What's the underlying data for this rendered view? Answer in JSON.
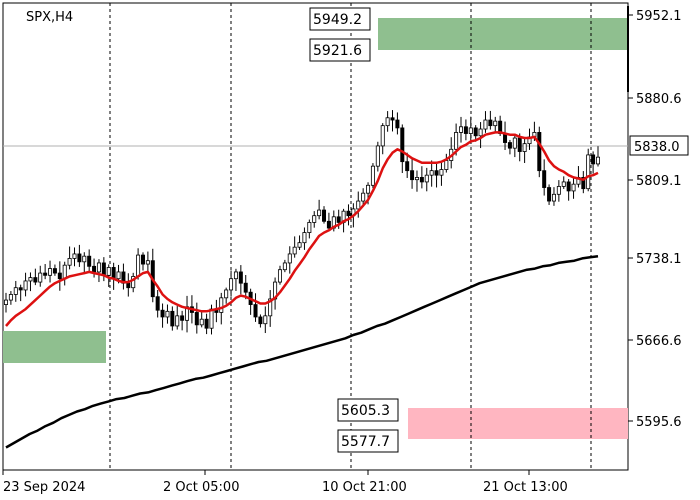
{
  "chart_data": {
    "type": "candlestick",
    "title": "SPX,H4",
    "y_ticks": [
      "5952.1",
      "5880.6",
      "5809.1",
      "5738.1",
      "5666.6",
      "5595.6"
    ],
    "x_ticks": [
      "23 Sep 2024",
      "2 Oct 05:00",
      "10 Oct 21:00",
      "21 Oct 13:00"
    ],
    "ylim": [
      5560,
      5975
    ],
    "current_price": "5838.0",
    "levels": {
      "upper_high": "5949.2",
      "upper_low": "5921.6",
      "lower_high": "5605.3",
      "lower_low": "5577.7"
    },
    "closes": [
      5711,
      5716,
      5722,
      5720,
      5728,
      5731,
      5727,
      5735,
      5733,
      5739,
      5735,
      5730,
      5742,
      5748,
      5752,
      5745,
      5750,
      5741,
      5736,
      5744,
      5733,
      5740,
      5730,
      5736,
      5726,
      5722,
      5732,
      5751,
      5743,
      5746,
      5714,
      5702,
      5696,
      5701,
      5688,
      5697,
      5693,
      5705,
      5700,
      5689,
      5694,
      5686,
      5703,
      5700,
      5713,
      5720,
      5730,
      5736,
      5726,
      5718,
      5707,
      5696,
      5690,
      5697,
      5712,
      5727,
      5738,
      5744,
      5752,
      5758,
      5762,
      5771,
      5780,
      5786,
      5791,
      5781,
      5775,
      5785,
      5780,
      5790,
      5786,
      5792,
      5799,
      5806,
      5813,
      5830,
      5848,
      5866,
      5873,
      5871,
      5864,
      5834,
      5826,
      5818,
      5820,
      5816,
      5822,
      5826,
      5822,
      5827,
      5835,
      5845,
      5860,
      5865,
      5859,
      5864,
      5857,
      5863,
      5871,
      5866,
      5870,
      5859,
      5851,
      5846,
      5855,
      5843,
      5850,
      5856,
      5860,
      5826,
      5811,
      5799,
      5805,
      5812,
      5816,
      5808,
      5814,
      5820,
      5810,
      5840,
      5832,
      5838
    ],
    "series": [
      {
        "name": "",
        "color": "#dd1111",
        "values": [
          5688,
          5693,
          5697,
          5700,
          5703,
          5707,
          5711,
          5715,
          5719,
          5723,
          5726,
          5728,
          5730,
          5732,
          5733,
          5734,
          5735,
          5736,
          5735,
          5734,
          5733,
          5731,
          5730,
          5728,
          5727,
          5727,
          5729,
          5732,
          5735,
          5736,
          5729,
          5723,
          5716,
          5712,
          5709,
          5707,
          5705,
          5704,
          5703,
          5702,
          5701,
          5701,
          5702,
          5703,
          5704,
          5706,
          5709,
          5713,
          5715,
          5714,
          5712,
          5710,
          5708,
          5708,
          5710,
          5713,
          5718,
          5724,
          5730,
          5737,
          5743,
          5749,
          5756,
          5762,
          5768,
          5771,
          5773,
          5776,
          5778,
          5781,
          5783,
          5786,
          5790,
          5795,
          5800,
          5808,
          5817,
          5828,
          5836,
          5842,
          5845,
          5843,
          5840,
          5837,
          5835,
          5833,
          5833,
          5833,
          5833,
          5834,
          5836,
          5839,
          5843,
          5847,
          5849,
          5852,
          5853,
          5855,
          5858,
          5859,
          5860,
          5860,
          5859,
          5858,
          5858,
          5856,
          5855,
          5855,
          5856,
          5850,
          5843,
          5835,
          5830,
          5827,
          5825,
          5822,
          5820,
          5819,
          5818,
          5821,
          5822,
          5824
        ]
      },
      {
        "name": "",
        "color": "#000000",
        "values": [
          5580,
          5584,
          5588,
          5592,
          5595,
          5599,
          5602,
          5606,
          5609,
          5612,
          5614,
          5617,
          5619,
          5621,
          5623,
          5624,
          5626,
          5628,
          5629,
          5631,
          5633,
          5635,
          5637,
          5639,
          5641,
          5642,
          5644,
          5646,
          5648,
          5650,
          5652,
          5654,
          5656,
          5657,
          5659,
          5661,
          5663,
          5665,
          5667,
          5669,
          5671,
          5673,
          5675,
          5677,
          5680,
          5682,
          5685,
          5688,
          5690,
          5693,
          5696,
          5699,
          5702,
          5705,
          5708,
          5711,
          5714,
          5717,
          5720,
          5723,
          5726,
          5728,
          5730,
          5732,
          5734,
          5736,
          5738,
          5739,
          5741,
          5742,
          5744,
          5745,
          5746,
          5748,
          5749,
          5750
        ]
      }
    ]
  }
}
